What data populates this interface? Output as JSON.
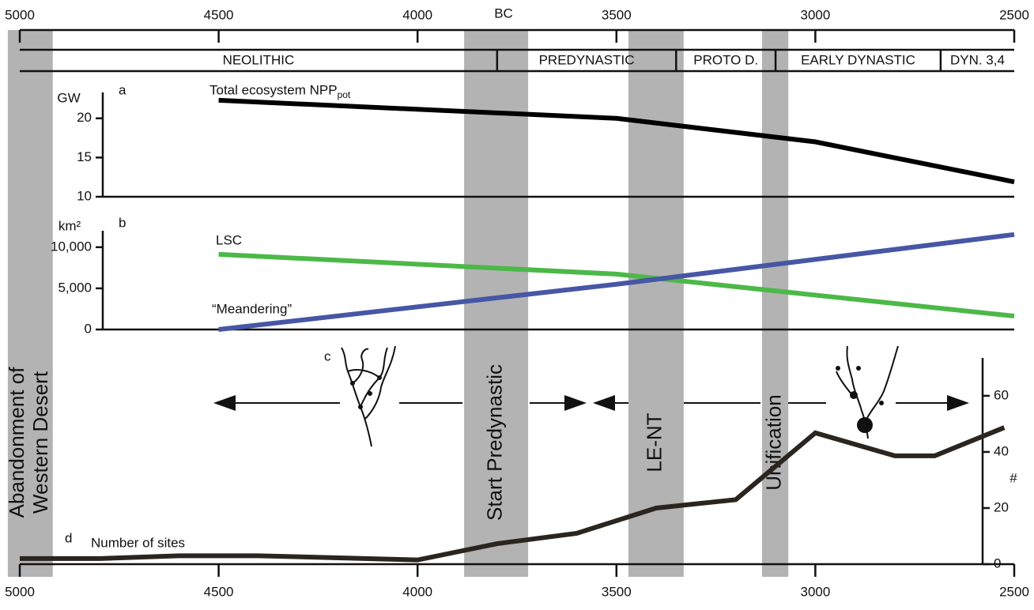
{
  "x_axis": {
    "label": "BC",
    "xlim": [
      5000,
      2500
    ],
    "xticks": [
      5000,
      4500,
      4000,
      3500,
      3000,
      2500
    ]
  },
  "periods": [
    {
      "label": "NEOLITHIC",
      "start": 5000,
      "end": 3800
    },
    {
      "label": "PREDYNASTIC",
      "start": 3800,
      "end": 3350
    },
    {
      "label": "PROTO D.",
      "start": 3350,
      "end": 3100
    },
    {
      "label": "EARLY DYNASTIC",
      "start": 3100,
      "end": 2685
    },
    {
      "label": "DYN. 3,4",
      "start": 2685,
      "end": 2500
    }
  ],
  "events": [
    {
      "label": [
        "Abandonment of",
        "Western Desert"
      ],
      "start": 5030,
      "end": 4917
    },
    {
      "label": [
        "Start Predynastic"
      ],
      "start": 3883,
      "end": 3722
    },
    {
      "label": [
        "LE-NT"
      ],
      "start": 3470,
      "end": 3331
    },
    {
      "label": [
        "Unification"
      ],
      "start": 3134,
      "end": 3068
    }
  ],
  "panel_c": {
    "panel_label": "c"
  },
  "chart_data": [
    {
      "type": "line",
      "panel_label": "a",
      "ylabel": "GW",
      "ylim": [
        10,
        23.3
      ],
      "yticks": [
        10,
        15,
        20
      ],
      "series": [
        {
          "name": "Total ecosystem NPP",
          "name_subscript": "pot",
          "color": "#000000",
          "x": [
            4500,
            3500,
            3000,
            2500
          ],
          "values": [
            22.3,
            20,
            17,
            11.9
          ]
        }
      ]
    },
    {
      "type": "line",
      "panel_label": "b",
      "ylabel": "km²",
      "ylim": [
        0,
        12000
      ],
      "yticks": [
        0,
        {
          "value": 5000,
          "label": "5,000"
        },
        {
          "value": 10000,
          "label": "10,000"
        }
      ],
      "series": [
        {
          "name": "LSC",
          "color": "#4cb848",
          "x": [
            4500,
            3500,
            2500
          ],
          "values": [
            9135,
            6730,
            1630
          ]
        },
        {
          "name": "“Meandering”",
          "color": "#4756a5",
          "x": [
            4500,
            3500,
            2500
          ],
          "values": [
            0,
            5500,
            11540
          ]
        }
      ]
    },
    {
      "type": "line",
      "panel_label": "d",
      "ylabel": "#",
      "ylim": [
        0,
        73.5
      ],
      "yticks": [
        0,
        20,
        40,
        60
      ],
      "series": [
        {
          "name": "Number of sites",
          "color": "#2b2520",
          "x": [
            5000,
            4800,
            4600,
            4400,
            4000,
            3800,
            3600,
            3400,
            3200,
            3000,
            2800,
            2700,
            2525
          ],
          "values": [
            2,
            2,
            3,
            3,
            1.5,
            7.3,
            11,
            20,
            23,
            46.8,
            38.6,
            38.6,
            48.7
          ]
        }
      ]
    }
  ]
}
